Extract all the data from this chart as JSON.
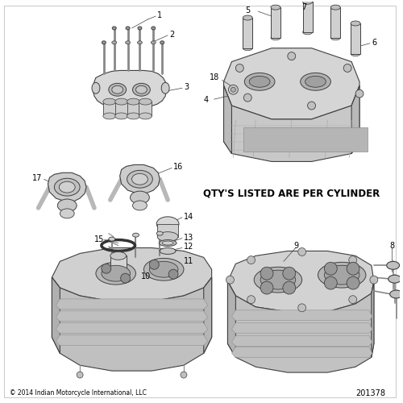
{
  "bg_color": "#ffffff",
  "border_color": "#d0d0d0",
  "line_color": "#404040",
  "text_color": "#000000",
  "gray_light": "#e8e8e8",
  "gray_mid": "#c8c8c8",
  "gray_dark": "#a0a0a0",
  "copyright_text": "© 2014 Indian Motorcycle International, LLC",
  "part_number": "201378",
  "note_text": "QTY'S LISTED ARE PER CYLINDER",
  "label_fontsize": 7.0,
  "footer_fontsize": 5.5,
  "partnum_fontsize": 7.0,
  "note_fontsize": 8.5
}
